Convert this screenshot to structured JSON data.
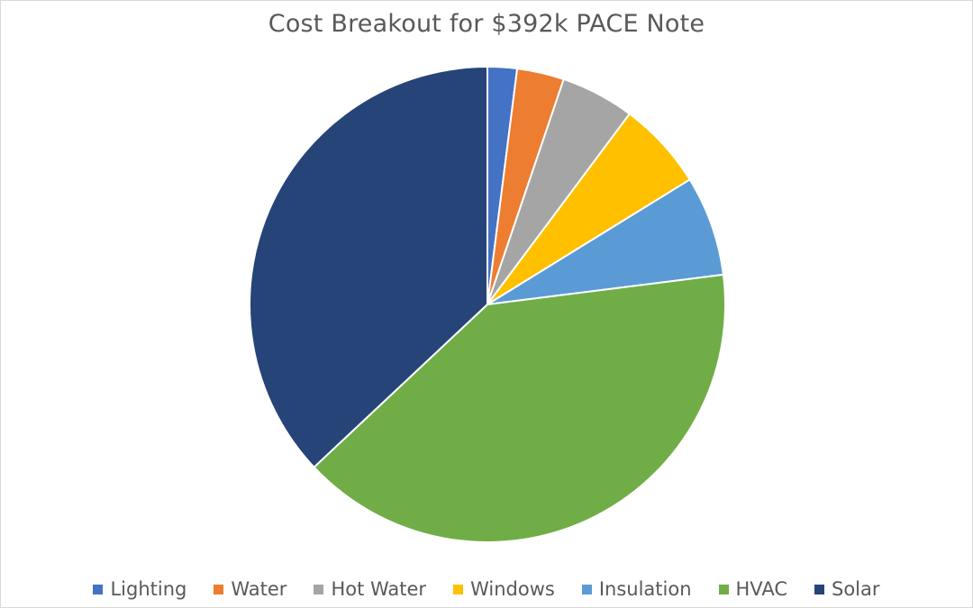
{
  "chart_data": {
    "type": "pie",
    "title": "Cost Breakout for $392k PACE Note",
    "categories": [
      "Lighting",
      "Water",
      "Hot Water",
      "Windows",
      "Insulation",
      "HVAC",
      "Solar"
    ],
    "values": [
      2,
      3.2,
      5,
      6,
      6.8,
      40,
      37
    ],
    "unit": "%",
    "colors": [
      "#4472c4",
      "#ed7d31",
      "#a5a5a5",
      "#ffc000",
      "#5b9bd5",
      "#70ad47",
      "#264478"
    ],
    "start_angle": "12 o'clock",
    "direction": "clockwise",
    "legend": "bottom"
  }
}
